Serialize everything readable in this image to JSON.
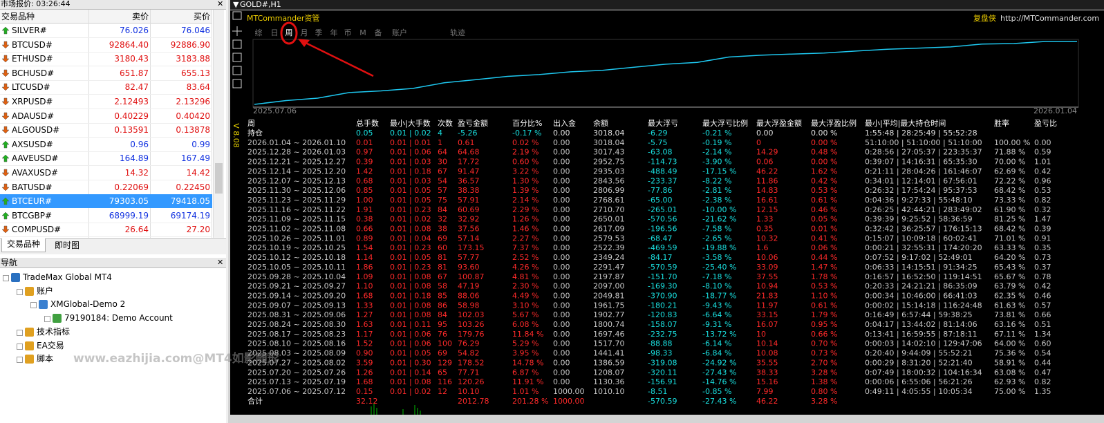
{
  "market_watch": {
    "title": "市场报价: 03:26:44",
    "columns": [
      "交易品种",
      "卖价",
      "买价"
    ],
    "rows": [
      {
        "symbol": "SILVER#",
        "bid": "76.026",
        "ask": "76.046",
        "direction": "up"
      },
      {
        "symbol": "BTCUSD#",
        "bid": "92864.40",
        "ask": "92886.90",
        "direction": "down"
      },
      {
        "symbol": "ETHUSD#",
        "bid": "3180.43",
        "ask": "3183.88",
        "direction": "down"
      },
      {
        "symbol": "BCHUSD#",
        "bid": "651.87",
        "ask": "655.13",
        "direction": "down"
      },
      {
        "symbol": "LTCUSD#",
        "bid": "82.47",
        "ask": "83.64",
        "direction": "down"
      },
      {
        "symbol": "XRPUSD#",
        "bid": "2.12493",
        "ask": "2.13296",
        "direction": "down"
      },
      {
        "symbol": "ADAUSD#",
        "bid": "0.40229",
        "ask": "0.40420",
        "direction": "down"
      },
      {
        "symbol": "ALGOUSD#",
        "bid": "0.13591",
        "ask": "0.13878",
        "direction": "down"
      },
      {
        "symbol": "AXSUSD#",
        "bid": "0.96",
        "ask": "0.99",
        "direction": "up"
      },
      {
        "symbol": "AAVEUSD#",
        "bid": "164.89",
        "ask": "167.49",
        "direction": "up"
      },
      {
        "symbol": "AVAXUSD#",
        "bid": "14.32",
        "ask": "14.42",
        "direction": "down"
      },
      {
        "symbol": "BATUSD#",
        "bid": "0.22069",
        "ask": "0.22450",
        "direction": "down"
      },
      {
        "symbol": "BTCEUR#",
        "bid": "79303.05",
        "ask": "79418.05",
        "direction": "up",
        "selected": true
      },
      {
        "symbol": "BTCGBP#",
        "bid": "68999.19",
        "ask": "69174.19",
        "direction": "up"
      },
      {
        "symbol": "COMPUSD#",
        "bid": "26.64",
        "ask": "27.20",
        "direction": "down"
      }
    ]
  },
  "tabs": [
    "交易品种",
    "即时图"
  ],
  "navigator": {
    "title": "导航",
    "root": "TradeMax Global MT4",
    "items": [
      {
        "label": "账户",
        "children": [
          {
            "label": "XMGlobal-Demo 2",
            "children": [
              {
                "label": "79190184: Demo Account"
              }
            ]
          }
        ]
      },
      {
        "label": "技术指标"
      },
      {
        "label": "EA交易"
      },
      {
        "label": "脚本"
      }
    ]
  },
  "watermark": "www.eazhijia.com@MT4如影随形",
  "chart_window": {
    "title": "GOLD#,H1",
    "plugin": "MTCommander资管",
    "brand": "复盘侠",
    "url": "http://MTCommander.com",
    "tabs": [
      "综",
      "日",
      "周",
      "月",
      "季",
      "年",
      "币",
      "M",
      "备",
      "账户",
      "轨迹"
    ],
    "active_tab": "周",
    "version": "V 8.08",
    "curve_dates": [
      "2025.07.06",
      "2026.01.04"
    ],
    "table": {
      "columns": [
        "周",
        "总手数",
        "最小|大手数",
        "次数",
        "盈亏金额",
        "百分比%",
        "出入金",
        "余额",
        "最大浮亏",
        "最大浮亏比例",
        "最大浮盈金额",
        "最大浮盈比例",
        "最小|平均|最大持仓时间",
        "胜率",
        "盈亏比"
      ],
      "rows": [
        [
          "持仓",
          "0.05",
          "0.01 | 0.02",
          "4",
          "-5.26",
          "-0.17 %",
          "0.00",
          "3018.04",
          "-6.29",
          "-0.21 %",
          "0.00",
          "0.00 %",
          "1:55:48 | 28:25:49 | 55:52:28",
          null,
          null
        ],
        [
          "2026.01.04 ~ 2026.01.10",
          "0.01",
          "0.01 | 0.01",
          "1",
          "0.61",
          "0.02 %",
          "0.00",
          "3018.04",
          "-5.75",
          "-0.19 %",
          "0",
          "0.00 %",
          "51:10:00 | 51:10:00 | 51:10:00",
          "100.00 %",
          "0.00"
        ],
        [
          "2025.12.28 ~ 2026.01.03",
          "0.97",
          "0.01 | 0.06",
          "64",
          "64.68",
          "2.19 %",
          "0.00",
          "3017.43",
          "-63.08",
          "-2.14 %",
          "14.29",
          "0.48 %",
          "0:28:56 | 27:05:37 | 223:35:37",
          "71.88 %",
          "0.59"
        ],
        [
          "2025.12.21 ~ 2025.12.27",
          "0.39",
          "0.01 | 0.03",
          "30",
          "17.72",
          "0.60 %",
          "0.00",
          "2952.75",
          "-114.73",
          "-3.90 %",
          "0.06",
          "0.00 %",
          "0:39:07 | 14:16:31 | 65:35:30",
          "70.00 %",
          "1.01"
        ],
        [
          "2025.12.14 ~ 2025.12.20",
          "1.42",
          "0.01 | 0.18",
          "67",
          "91.47",
          "3.22 %",
          "0.00",
          "2935.03",
          "-488.49",
          "-17.15 %",
          "46.22",
          "1.62 %",
          "0:21:11 | 28:04:26 | 161:46:07",
          "62.69 %",
          "0.42"
        ],
        [
          "2025.12.07 ~ 2025.12.13",
          "0.68",
          "0.01 | 0.03",
          "54",
          "36.57",
          "1.30 %",
          "0.00",
          "2843.56",
          "-233.37",
          "-8.22 %",
          "11.86",
          "0.42 %",
          "0:34:01 | 12:14:01 | 67:56:01",
          "72.22 %",
          "0.96"
        ],
        [
          "2025.11.30 ~ 2025.12.06",
          "0.85",
          "0.01 | 0.05",
          "57",
          "38.38",
          "1.39 %",
          "0.00",
          "2806.99",
          "-77.86",
          "-2.81 %",
          "14.83",
          "0.53 %",
          "0:26:32 | 17:54:24 | 95:37:53",
          "68.42 %",
          "0.53"
        ],
        [
          "2025.11.23 ~ 2025.11.29",
          "1.00",
          "0.01 | 0.05",
          "75",
          "57.91",
          "2.14 %",
          "0.00",
          "2768.61",
          "-65.00",
          "-2.38 %",
          "16.61",
          "0.61 %",
          "0:04:36 | 9:27:33 | 55:48:10",
          "73.33 %",
          "0.82"
        ],
        [
          "2025.11.16 ~ 2025.11.22",
          "1.91",
          "0.01 | 0.23",
          "84",
          "60.69",
          "2.29 %",
          "0.00",
          "2710.70",
          "-265.01",
          "-10.00 %",
          "12.15",
          "0.46 %",
          "0:26:25 | 42:44:21 | 283:49:02",
          "61.90 %",
          "0.32"
        ],
        [
          "2025.11.09 ~ 2025.11.15",
          "0.38",
          "0.01 | 0.02",
          "32",
          "32.92",
          "1.26 %",
          "0.00",
          "2650.01",
          "-570.56",
          "-21.62 %",
          "1.33",
          "0.05 %",
          "0:39:39 | 9:25:52 | 58:36:59",
          "81.25 %",
          "1.47"
        ],
        [
          "2025.11.02 ~ 2025.11.08",
          "0.66",
          "0.01 | 0.08",
          "38",
          "37.56",
          "1.46 %",
          "0.00",
          "2617.09",
          "-196.56",
          "-7.58 %",
          "0.35",
          "0.01 %",
          "0:32:42 | 36:25:57 | 176:15:13",
          "68.42 %",
          "0.39"
        ],
        [
          "2025.10.26 ~ 2025.11.01",
          "0.89",
          "0.01 | 0.04",
          "69",
          "57.14",
          "2.27 %",
          "0.00",
          "2579.53",
          "-68.47",
          "-2.65 %",
          "10.32",
          "0.41 %",
          "0:15:07 | 10:09:18 | 60:02:41",
          "71.01 %",
          "0.91"
        ],
        [
          "2025.10.19 ~ 2025.10.25",
          "1.54",
          "0.01 | 0.23",
          "60",
          "173.15",
          "7.37 %",
          "0.00",
          "2522.39",
          "-469.59",
          "-19.88 %",
          "1.6",
          "0.06 %",
          "0:00:21 | 32:55:31 | 174:20:20",
          "63.33 %",
          "0.35"
        ],
        [
          "2025.10.12 ~ 2025.10.18",
          "1.14",
          "0.01 | 0.05",
          "81",
          "57.77",
          "2.52 %",
          "0.00",
          "2349.24",
          "-84.17",
          "-3.58 %",
          "10.06",
          "0.44 %",
          "0:07:52 | 9:17:02 | 52:49:01",
          "64.20 %",
          "0.73"
        ],
        [
          "2025.10.05 ~ 2025.10.11",
          "1.86",
          "0.01 | 0.23",
          "81",
          "93.60",
          "4.26 %",
          "0.00",
          "2291.47",
          "-570.59",
          "-25.40 %",
          "33.09",
          "1.47 %",
          "0:06:33 | 14:15:51 | 91:34:25",
          "65.43 %",
          "0.37"
        ],
        [
          "2025.09.28 ~ 2025.10.04",
          "1.09",
          "0.01 | 0.08",
          "67",
          "100.87",
          "4.81 %",
          "0.00",
          "2197.87",
          "-151.70",
          "-7.18 %",
          "37.55",
          "1.78 %",
          "0:16:57 | 16:52:50 | 119:14:51",
          "65.67 %",
          "0.78"
        ],
        [
          "2025.09.21 ~ 2025.09.27",
          "1.10",
          "0.01 | 0.08",
          "58",
          "47.19",
          "2.30 %",
          "0.00",
          "2097.00",
          "-169.30",
          "-8.10 %",
          "10.94",
          "0.53 %",
          "0:20:33 | 24:21:21 | 86:35:09",
          "63.79 %",
          "0.42"
        ],
        [
          "2025.09.14 ~ 2025.09.20",
          "1.68",
          "0.01 | 0.18",
          "85",
          "88.06",
          "4.49 %",
          "0.00",
          "2049.81",
          "-370.90",
          "-18.77 %",
          "21.83",
          "1.10 %",
          "0:00:34 | 10:46:00 | 66:41:03",
          "62.35 %",
          "0.46"
        ],
        [
          "2025.09.07 ~ 2025.09.13",
          "1.33",
          "0.01 | 0.08",
          "86",
          "58.98",
          "3.10 %",
          "0.00",
          "1961.75",
          "-180.21",
          "-9.43 %",
          "11.97",
          "0.61 %",
          "0:00:02 | 15:14:18 | 116:24:48",
          "61.63 %",
          "0.57"
        ],
        [
          "2025.08.31 ~ 2025.09.06",
          "1.27",
          "0.01 | 0.08",
          "84",
          "102.03",
          "5.67 %",
          "0.00",
          "1902.77",
          "-120.83",
          "-6.64 %",
          "33.15",
          "1.79 %",
          "0:16:49 | 6:57:44 | 59:38:25",
          "73.81 %",
          "0.66"
        ],
        [
          "2025.08.24 ~ 2025.08.30",
          "1.63",
          "0.01 | 0.11",
          "95",
          "103.26",
          "6.08 %",
          "0.00",
          "1800.74",
          "-158.07",
          "-9.31 %",
          "16.07",
          "0.95 %",
          "0:04:17 | 13:44:02 | 81:14:06",
          "63.16 %",
          "0.51"
        ],
        [
          "2025.08.17 ~ 2025.08.23",
          "1.17",
          "0.01 | 0.06",
          "76",
          "179.76",
          "11.84 %",
          "0.00",
          "1697.46",
          "-232.75",
          "-13.72 %",
          "10",
          "0.66 %",
          "0:13:41 | 16:59:55 | 87:18:11",
          "67.11 %",
          "1.34"
        ],
        [
          "2025.08.10 ~ 2025.08.16",
          "1.52",
          "0.01 | 0.06",
          "100",
          "76.29",
          "5.29 %",
          "0.00",
          "1517.70",
          "-88.88",
          "-6.14 %",
          "10.14",
          "0.70 %",
          "0:00:03 | 14:02:10 | 129:47:06",
          "64.00 %",
          "0.60"
        ],
        [
          "2025.08.03 ~ 2025.08.09",
          "0.90",
          "0.01 | 0.05",
          "69",
          "54.82",
          "3.95 %",
          "0.00",
          "1441.41",
          "-98.33",
          "-6.84 %",
          "10.08",
          "0.73 %",
          "0:20:40 | 9:44:09 | 55:52:21",
          "75.36 %",
          "0.54"
        ],
        [
          "2025.07.27 ~ 2025.08.02",
          "3.59",
          "0.01 | 0.30",
          "129",
          "178.52",
          "14.78 %",
          "0.00",
          "1386.59",
          "-319.08",
          "-24.92 %",
          "35.55",
          "2.70 %",
          "0:00:29 | 8:31:20 | 52:21:40",
          "58.91 %",
          "0.44"
        ],
        [
          "2025.07.20 ~ 2025.07.26",
          "1.26",
          "0.01 | 0.14",
          "65",
          "77.71",
          "6.87 %",
          "0.00",
          "1208.07",
          "-320.11",
          "-27.43 %",
          "38.33",
          "3.28 %",
          "0:07:49 | 18:00:32 | 104:16:34",
          "63.08 %",
          "0.47"
        ],
        [
          "2025.07.13 ~ 2025.07.19",
          "1.68",
          "0.01 | 0.08",
          "116",
          "120.26",
          "11.91 %",
          "0.00",
          "1130.36",
          "-156.91",
          "-14.76 %",
          "15.16",
          "1.38 %",
          "0:00:06 | 6:55:06 | 56:21:26",
          "62.93 %",
          "0.82"
        ],
        [
          "2025.07.06 ~ 2025.07.12",
          "0.15",
          "0.01 | 0.02",
          "12",
          "10.10",
          "1.01 %",
          "1000.00",
          "1010.10",
          "-8.51",
          "-0.85 %",
          "7.99",
          "0.80 %",
          "0:49:11 | 4:05:55 | 10:05:34",
          "75.00 %",
          "1.35"
        ],
        [
          "合计",
          "32.12",
          null,
          null,
          "2012.78",
          "201.28 %",
          "1000.00",
          null,
          "-570.59",
          "-27.43 %",
          "46.22",
          "3.28 %",
          null,
          null,
          null
        ]
      ]
    }
  }
}
